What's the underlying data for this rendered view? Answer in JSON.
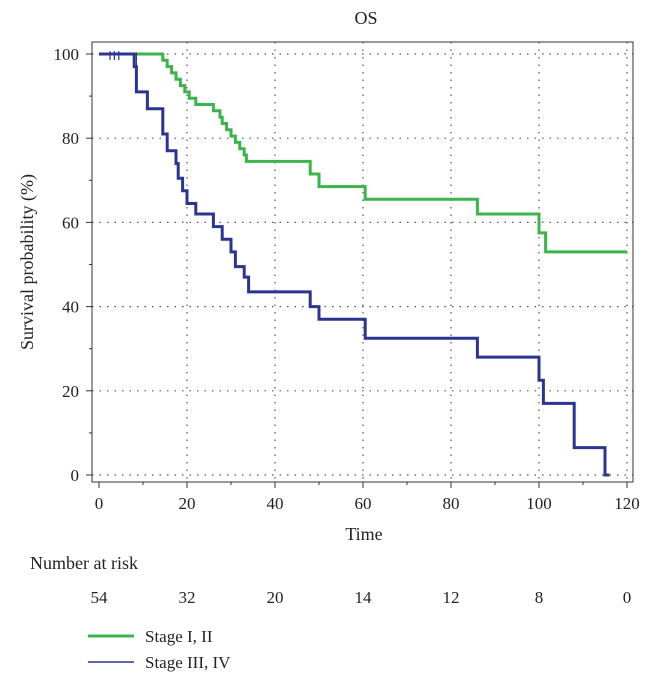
{
  "chart_data": {
    "type": "line",
    "subtype": "kaplan-meier",
    "title": "OS",
    "xlabel": "Time",
    "ylabel": "Survival probability (%)",
    "xlim": [
      0,
      120
    ],
    "ylim": [
      0,
      100
    ],
    "xticks": [
      0,
      20,
      40,
      60,
      80,
      100,
      120
    ],
    "yticks": [
      0,
      20,
      40,
      60,
      80,
      100
    ],
    "grid": true,
    "risk_table": {
      "label": "Number at risk",
      "x": [
        0,
        20,
        40,
        60,
        80,
        100,
        120
      ],
      "values": [
        "54",
        "32",
        "20",
        "14",
        "12",
        "8",
        "0"
      ]
    },
    "series": [
      {
        "name": "Stage I, II",
        "color": "#3cb44b",
        "points": [
          [
            0,
            100
          ],
          [
            14.5,
            100
          ],
          [
            14.5,
            98.5
          ],
          [
            15.5,
            98.5
          ],
          [
            15.5,
            97
          ],
          [
            16.5,
            97
          ],
          [
            16.5,
            95.5
          ],
          [
            17.5,
            95.5
          ],
          [
            17.5,
            94
          ],
          [
            18.5,
            94
          ],
          [
            18.5,
            92.5
          ],
          [
            19.5,
            92.5
          ],
          [
            19.5,
            91
          ],
          [
            20.5,
            91
          ],
          [
            20.5,
            89.5
          ],
          [
            22,
            89.5
          ],
          [
            22,
            88
          ],
          [
            26,
            88
          ],
          [
            26,
            86.5
          ],
          [
            27.5,
            86.5
          ],
          [
            27.5,
            85
          ],
          [
            28,
            85
          ],
          [
            28,
            83.5
          ],
          [
            29,
            83.5
          ],
          [
            29,
            82
          ],
          [
            30,
            82
          ],
          [
            30,
            80.5
          ],
          [
            31,
            80.5
          ],
          [
            31,
            79
          ],
          [
            32,
            79
          ],
          [
            32,
            77.5
          ],
          [
            33,
            77.5
          ],
          [
            33,
            76
          ],
          [
            33.5,
            76
          ],
          [
            33.5,
            74.5
          ],
          [
            48,
            74.5
          ],
          [
            48,
            71.5
          ],
          [
            50,
            71.5
          ],
          [
            50,
            68.5
          ],
          [
            60.5,
            68.5
          ],
          [
            60.5,
            65.5
          ],
          [
            86,
            65.5
          ],
          [
            86,
            62
          ],
          [
            100,
            62
          ],
          [
            100,
            57.5
          ],
          [
            101.5,
            57.5
          ],
          [
            101.5,
            53
          ],
          [
            120,
            53
          ]
        ],
        "censored": []
      },
      {
        "name": "Stage III, IV",
        "color": "#2b3590",
        "points": [
          [
            0,
            100
          ],
          [
            8,
            100
          ],
          [
            8,
            97
          ],
          [
            8.5,
            97
          ],
          [
            8.5,
            91
          ],
          [
            11,
            91
          ],
          [
            11,
            87
          ],
          [
            14.5,
            87
          ],
          [
            14.5,
            81
          ],
          [
            15.5,
            81
          ],
          [
            15.5,
            77
          ],
          [
            17.5,
            77
          ],
          [
            17.5,
            74
          ],
          [
            18,
            74
          ],
          [
            18,
            70.5
          ],
          [
            19,
            70.5
          ],
          [
            19,
            67.5
          ],
          [
            20,
            67.5
          ],
          [
            20,
            64.5
          ],
          [
            22,
            64.5
          ],
          [
            22,
            62
          ],
          [
            26,
            62
          ],
          [
            26,
            59
          ],
          [
            28,
            59
          ],
          [
            28,
            56
          ],
          [
            30,
            56
          ],
          [
            30,
            53
          ],
          [
            31,
            53
          ],
          [
            31,
            49.5
          ],
          [
            33,
            49.5
          ],
          [
            33,
            47
          ],
          [
            34,
            47
          ],
          [
            34,
            43.5
          ],
          [
            48,
            43.5
          ],
          [
            48,
            40
          ],
          [
            50,
            40
          ],
          [
            50,
            37
          ],
          [
            60.5,
            37
          ],
          [
            60.5,
            32.5
          ],
          [
            86,
            32.5
          ],
          [
            86,
            28
          ],
          [
            100,
            28
          ],
          [
            100,
            22.5
          ],
          [
            101,
            22.5
          ],
          [
            101,
            17
          ],
          [
            108,
            17
          ],
          [
            108,
            6.5
          ],
          [
            115,
            6.5
          ],
          [
            115,
            0
          ],
          [
            116,
            0
          ]
        ],
        "censored": [
          [
            2.5,
            99.5
          ],
          [
            3.5,
            99.5
          ],
          [
            4.5,
            99.5
          ],
          [
            8.5,
            99.2
          ],
          [
            8.5,
            97
          ]
        ]
      }
    ]
  }
}
